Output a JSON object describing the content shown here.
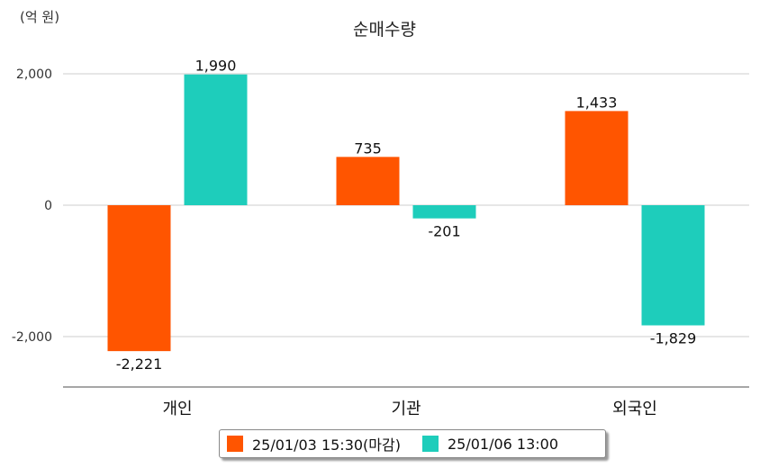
{
  "unit_label": "(억 원)",
  "colors": {
    "series1": "#ff5500",
    "series2": "#1ecdbb",
    "grid": "#cccccc",
    "axis": "#888888"
  },
  "chart_data": {
    "type": "bar",
    "title": "순매수량",
    "categories": [
      "개인",
      "기관",
      "외국인"
    ],
    "ylim": [
      -2800,
      2400
    ],
    "yticks": [
      2000,
      0,
      -2000
    ],
    "ytick_labels": [
      "2,000",
      "0",
      "-2,000"
    ],
    "grid": true,
    "legend_position": "bottom",
    "series": [
      {
        "name": "25/01/03 15:30(마감)",
        "values": [
          -2221,
          735,
          1433
        ],
        "labels": [
          "-2,221",
          "735",
          "1,433"
        ]
      },
      {
        "name": "25/01/06 13:00",
        "values": [
          1990,
          -201,
          -1829
        ],
        "labels": [
          "1,990",
          "-201",
          "-1,829"
        ]
      }
    ]
  }
}
